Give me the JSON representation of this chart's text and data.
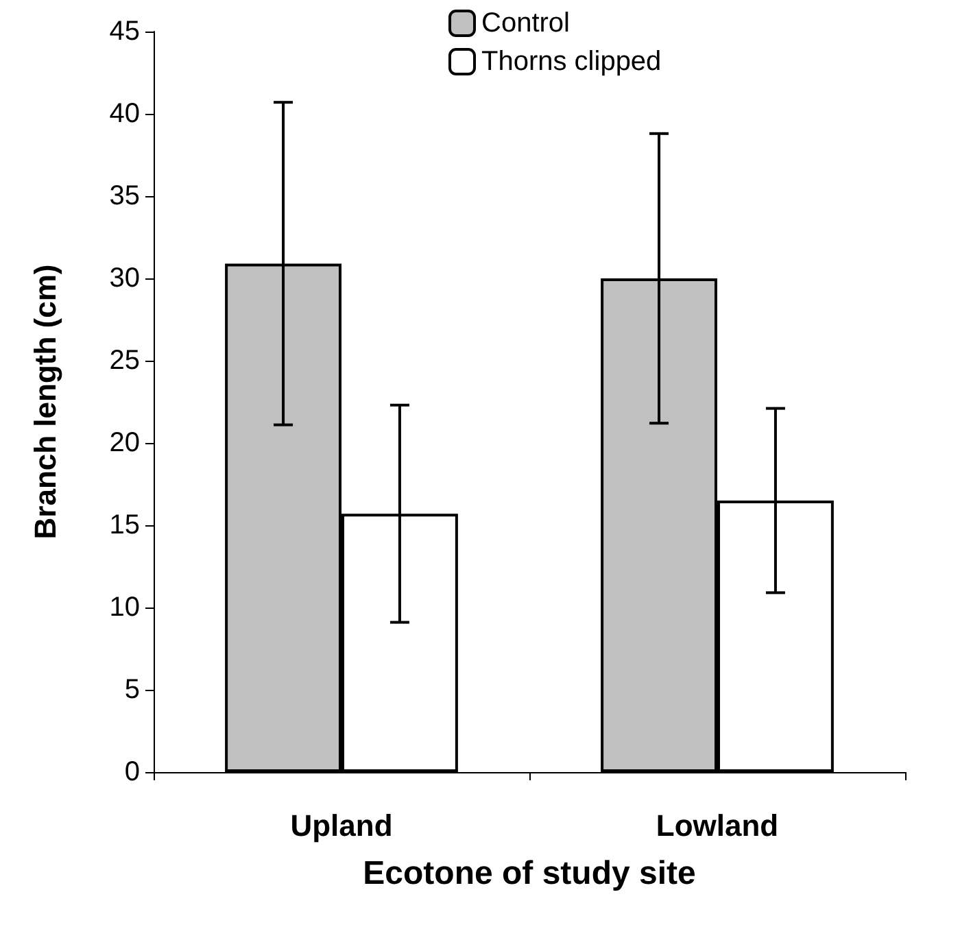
{
  "chart_data": {
    "type": "bar",
    "xlabel": "Ecotone of study site",
    "ylabel": "Branch length (cm)",
    "categories": [
      "Upland",
      "Lowland"
    ],
    "series": [
      {
        "name": "Control",
        "color": "#c0c0c0",
        "values": [
          30.9,
          30.0
        ],
        "errors": [
          9.8,
          8.8
        ]
      },
      {
        "name": "Thorns clipped",
        "color": "#ffffff",
        "values": [
          15.7,
          16.5
        ],
        "errors": [
          6.6,
          5.6
        ]
      }
    ],
    "ylim": [
      0,
      45
    ],
    "yticks": [
      0,
      5,
      10,
      15,
      20,
      25,
      30,
      35,
      40,
      45
    ],
    "grid": false,
    "legend": "top"
  }
}
